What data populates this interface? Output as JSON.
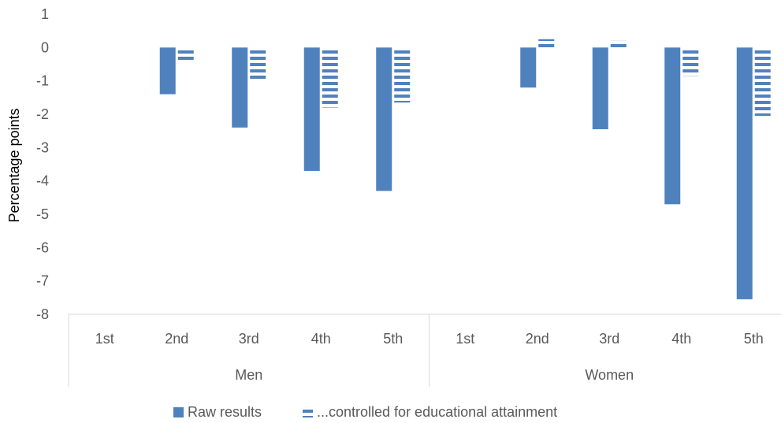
{
  "chart_data": {
    "type": "bar",
    "ylabel": "Percentage points",
    "ylim": [
      -8,
      1
    ],
    "yticks": [
      1,
      0,
      -1,
      -2,
      -3,
      -4,
      -5,
      -6,
      -7,
      -8
    ],
    "groups": [
      {
        "name": "Men",
        "categories": [
          "1st",
          "2nd",
          "3rd",
          "4th",
          "5th"
        ]
      },
      {
        "name": "Women",
        "categories": [
          "1st",
          "2nd",
          "3rd",
          "4th",
          "5th"
        ]
      }
    ],
    "series": [
      {
        "name": "Raw results",
        "pattern": "solid",
        "color": "#4f81bd",
        "values": [
          0,
          -1.4,
          -2.4,
          -3.7,
          -4.3,
          0,
          -1.2,
          -2.45,
          -4.7,
          -7.55
        ]
      },
      {
        "name": "...controlled for educational attainment",
        "pattern": "horizontal-stripes",
        "color": "#4f81bd",
        "values": [
          0,
          -0.45,
          -1.0,
          -1.8,
          -1.65,
          0,
          0.25,
          0.2,
          -0.85,
          -2.05
        ]
      }
    ],
    "legend_position": "bottom",
    "grid": false
  }
}
